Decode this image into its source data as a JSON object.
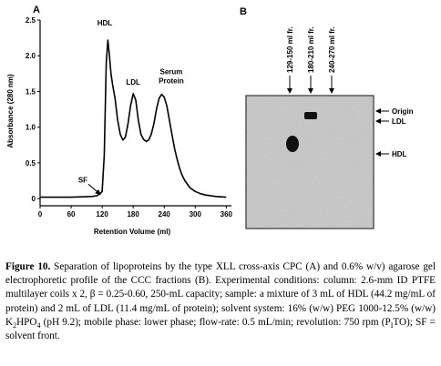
{
  "panel_a": {
    "label": "A",
    "chart_data": {
      "type": "line",
      "xlabel": "Retention Volume (ml)",
      "ylabel": "Absorbance (280 nm)",
      "xlim": [
        0,
        370
      ],
      "ylim": [
        -0.1,
        2.5
      ],
      "xticks": [
        "0",
        "60",
        "120",
        "180",
        "240",
        "300",
        "360"
      ],
      "xtick_values": [
        0,
        60,
        120,
        180,
        240,
        300,
        360
      ],
      "yticks": [
        "0",
        "0.5",
        "1.0",
        "1.5",
        "2.0",
        "2.5"
      ],
      "ytick_values": [
        0,
        0.5,
        1.0,
        1.5,
        2.0,
        2.5
      ],
      "grid": false,
      "series": [
        {
          "x": [
            0,
            60,
            100,
            110,
            116,
            120,
            124,
            128,
            131,
            134,
            137,
            140,
            145,
            150,
            155,
            160,
            165,
            170,
            175,
            180,
            185,
            190,
            195,
            200,
            205,
            210,
            215,
            220,
            225,
            230,
            235,
            240,
            245,
            250,
            255,
            260,
            265,
            270,
            275,
            280,
            290,
            300,
            310,
            320,
            340,
            360
          ],
          "y": [
            0.02,
            0.02,
            0.03,
            0.04,
            0.07,
            0.1,
            0.6,
            1.9,
            2.22,
            2.0,
            1.75,
            1.6,
            1.4,
            1.1,
            0.9,
            0.82,
            0.86,
            1.05,
            1.3,
            1.47,
            1.38,
            1.1,
            0.9,
            0.83,
            0.8,
            0.82,
            0.9,
            1.05,
            1.25,
            1.4,
            1.46,
            1.42,
            1.3,
            1.1,
            0.9,
            0.7,
            0.55,
            0.42,
            0.32,
            0.25,
            0.15,
            0.1,
            0.07,
            0.05,
            0.03,
            0.02
          ]
        }
      ],
      "annotations": [
        {
          "text": "HDL",
          "x": 132,
          "y": 2.22
        },
        {
          "text": "LDL",
          "x": 180,
          "y": 1.47
        },
        {
          "text": "Serum",
          "x": 236,
          "y": 1.46
        },
        {
          "text": "Protein",
          "x": 236,
          "y": 1.46
        },
        {
          "text": "SF",
          "x": 118,
          "y": 0.1
        }
      ]
    }
  },
  "panel_b": {
    "label": "B",
    "fractions": [
      "129-150 ml fr.",
      "180-210 ml fr.",
      "240-270 ml fr."
    ],
    "right_labels": [
      "Origin",
      "LDL",
      "HDL"
    ]
  },
  "caption": {
    "figure_label": "Figure 10.",
    "segments": [
      " Separation of lipoproteins by the type XLL cross-axis CPC (A) and 0.6% w/v) agarose gel electrophoretic profile of the CCC fractions (B). Experimental conditions: column: 2.6-mm ID PTFE multilayer coils x 2, β = 0.25-0.60, 250-mL capacity; sample: a mixture of 3 mL of HDL (44.2 mg/mL of protein) and 2 mL of LDL (11.4 mg/mL of protein); solvent system: 16% (w/w) PEG 1000-12.5% (w/w) K",
      "2",
      "HPO",
      "4",
      " (pH 9.2); mobile phase: lower phase; flow-rate: 0.5 mL/min; revolution: 750 rpm (P",
      "I",
      "TO); SF = solvent front."
    ]
  }
}
